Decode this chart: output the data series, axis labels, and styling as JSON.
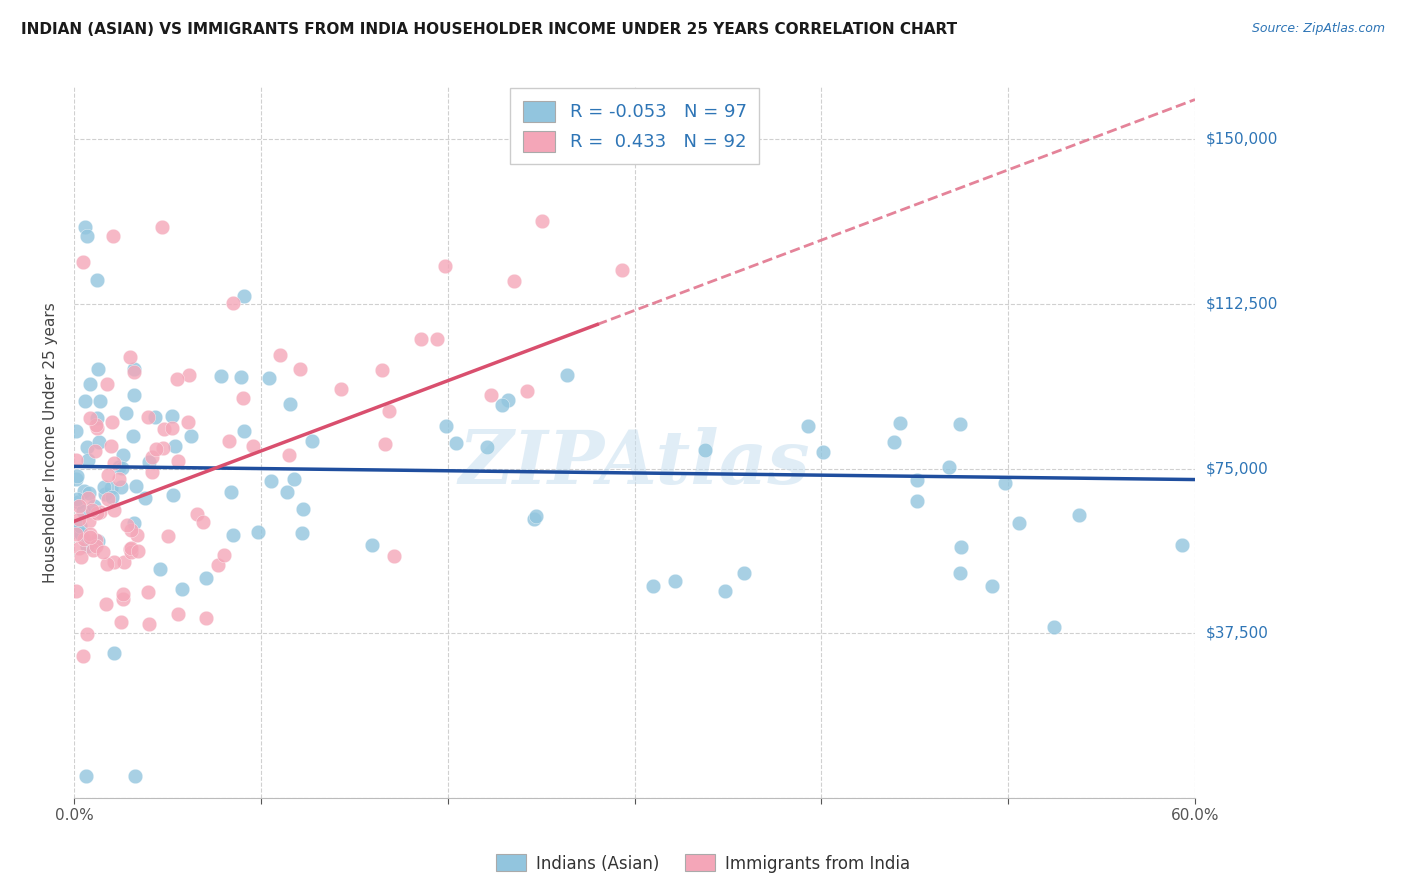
{
  "title": "INDIAN (ASIAN) VS IMMIGRANTS FROM INDIA HOUSEHOLDER INCOME UNDER 25 YEARS CORRELATION CHART",
  "source": "Source: ZipAtlas.com",
  "ylabel": "Householder Income Under 25 years",
  "y_ticks": [
    0,
    37500,
    75000,
    112500,
    150000
  ],
  "y_tick_labels": [
    "",
    "$37,500",
    "$75,000",
    "$112,500",
    "$150,000"
  ],
  "x_min": 0.0,
  "x_max": 0.6,
  "y_min": 0,
  "y_max": 162000,
  "R_blue": -0.053,
  "N_blue": 97,
  "R_pink": 0.433,
  "N_pink": 92,
  "blue_color": "#92c5de",
  "pink_color": "#f4a6b8",
  "blue_line_color": "#1f4e9e",
  "pink_line_color": "#d94f6e",
  "watermark": "ZIPAtlas",
  "blue_intercept": 76000,
  "blue_slope": -8000,
  "pink_intercept": 62000,
  "pink_slope": 155000
}
